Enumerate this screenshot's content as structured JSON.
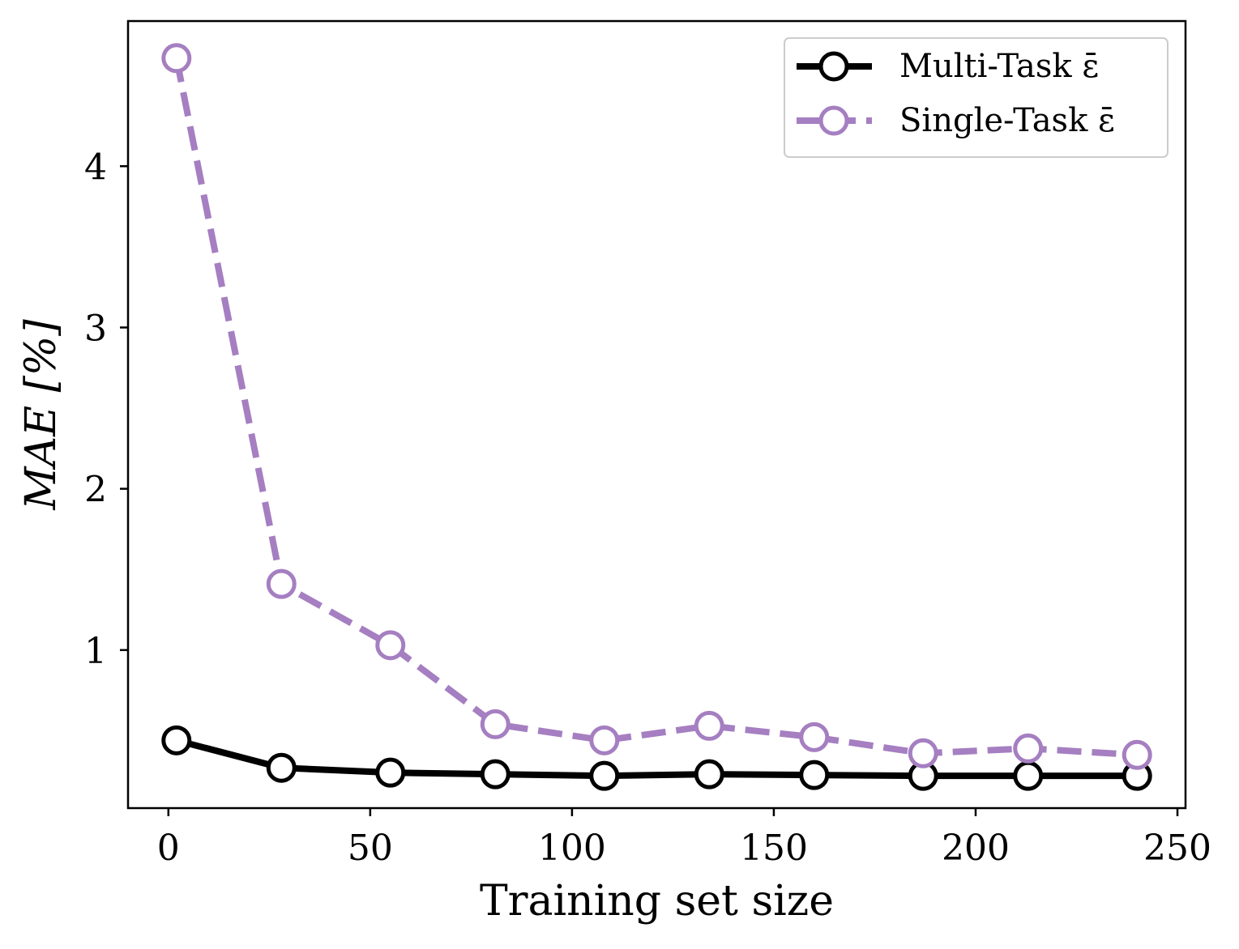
{
  "chart_data": {
    "type": "line",
    "xlabel": "Training set size",
    "ylabel": "MAE [%]",
    "xlim": [
      -10,
      252
    ],
    "ylim": [
      0.02,
      4.9
    ],
    "xticks": [
      0,
      50,
      100,
      150,
      200,
      250
    ],
    "yticks": [
      1,
      2,
      3,
      4
    ],
    "grid": false,
    "legend_position": "top-right",
    "series": [
      {
        "name": "Multi-Task  ε̄",
        "color": "#000000",
        "line_style": "solid",
        "marker": "open-circle",
        "x": [
          2,
          28,
          55,
          81,
          108,
          134,
          160,
          187,
          213,
          240
        ],
        "y": [
          0.44,
          0.27,
          0.24,
          0.23,
          0.22,
          0.23,
          0.225,
          0.22,
          0.22,
          0.22
        ]
      },
      {
        "name": "Single-Task  ε̄",
        "color": "#a57fc1",
        "line_style": "dashed",
        "marker": "open-circle",
        "x": [
          2,
          28,
          55,
          81,
          108,
          134,
          160,
          187,
          213,
          240
        ],
        "y": [
          4.67,
          1.41,
          1.03,
          0.54,
          0.44,
          0.53,
          0.46,
          0.36,
          0.39,
          0.35
        ]
      }
    ]
  }
}
